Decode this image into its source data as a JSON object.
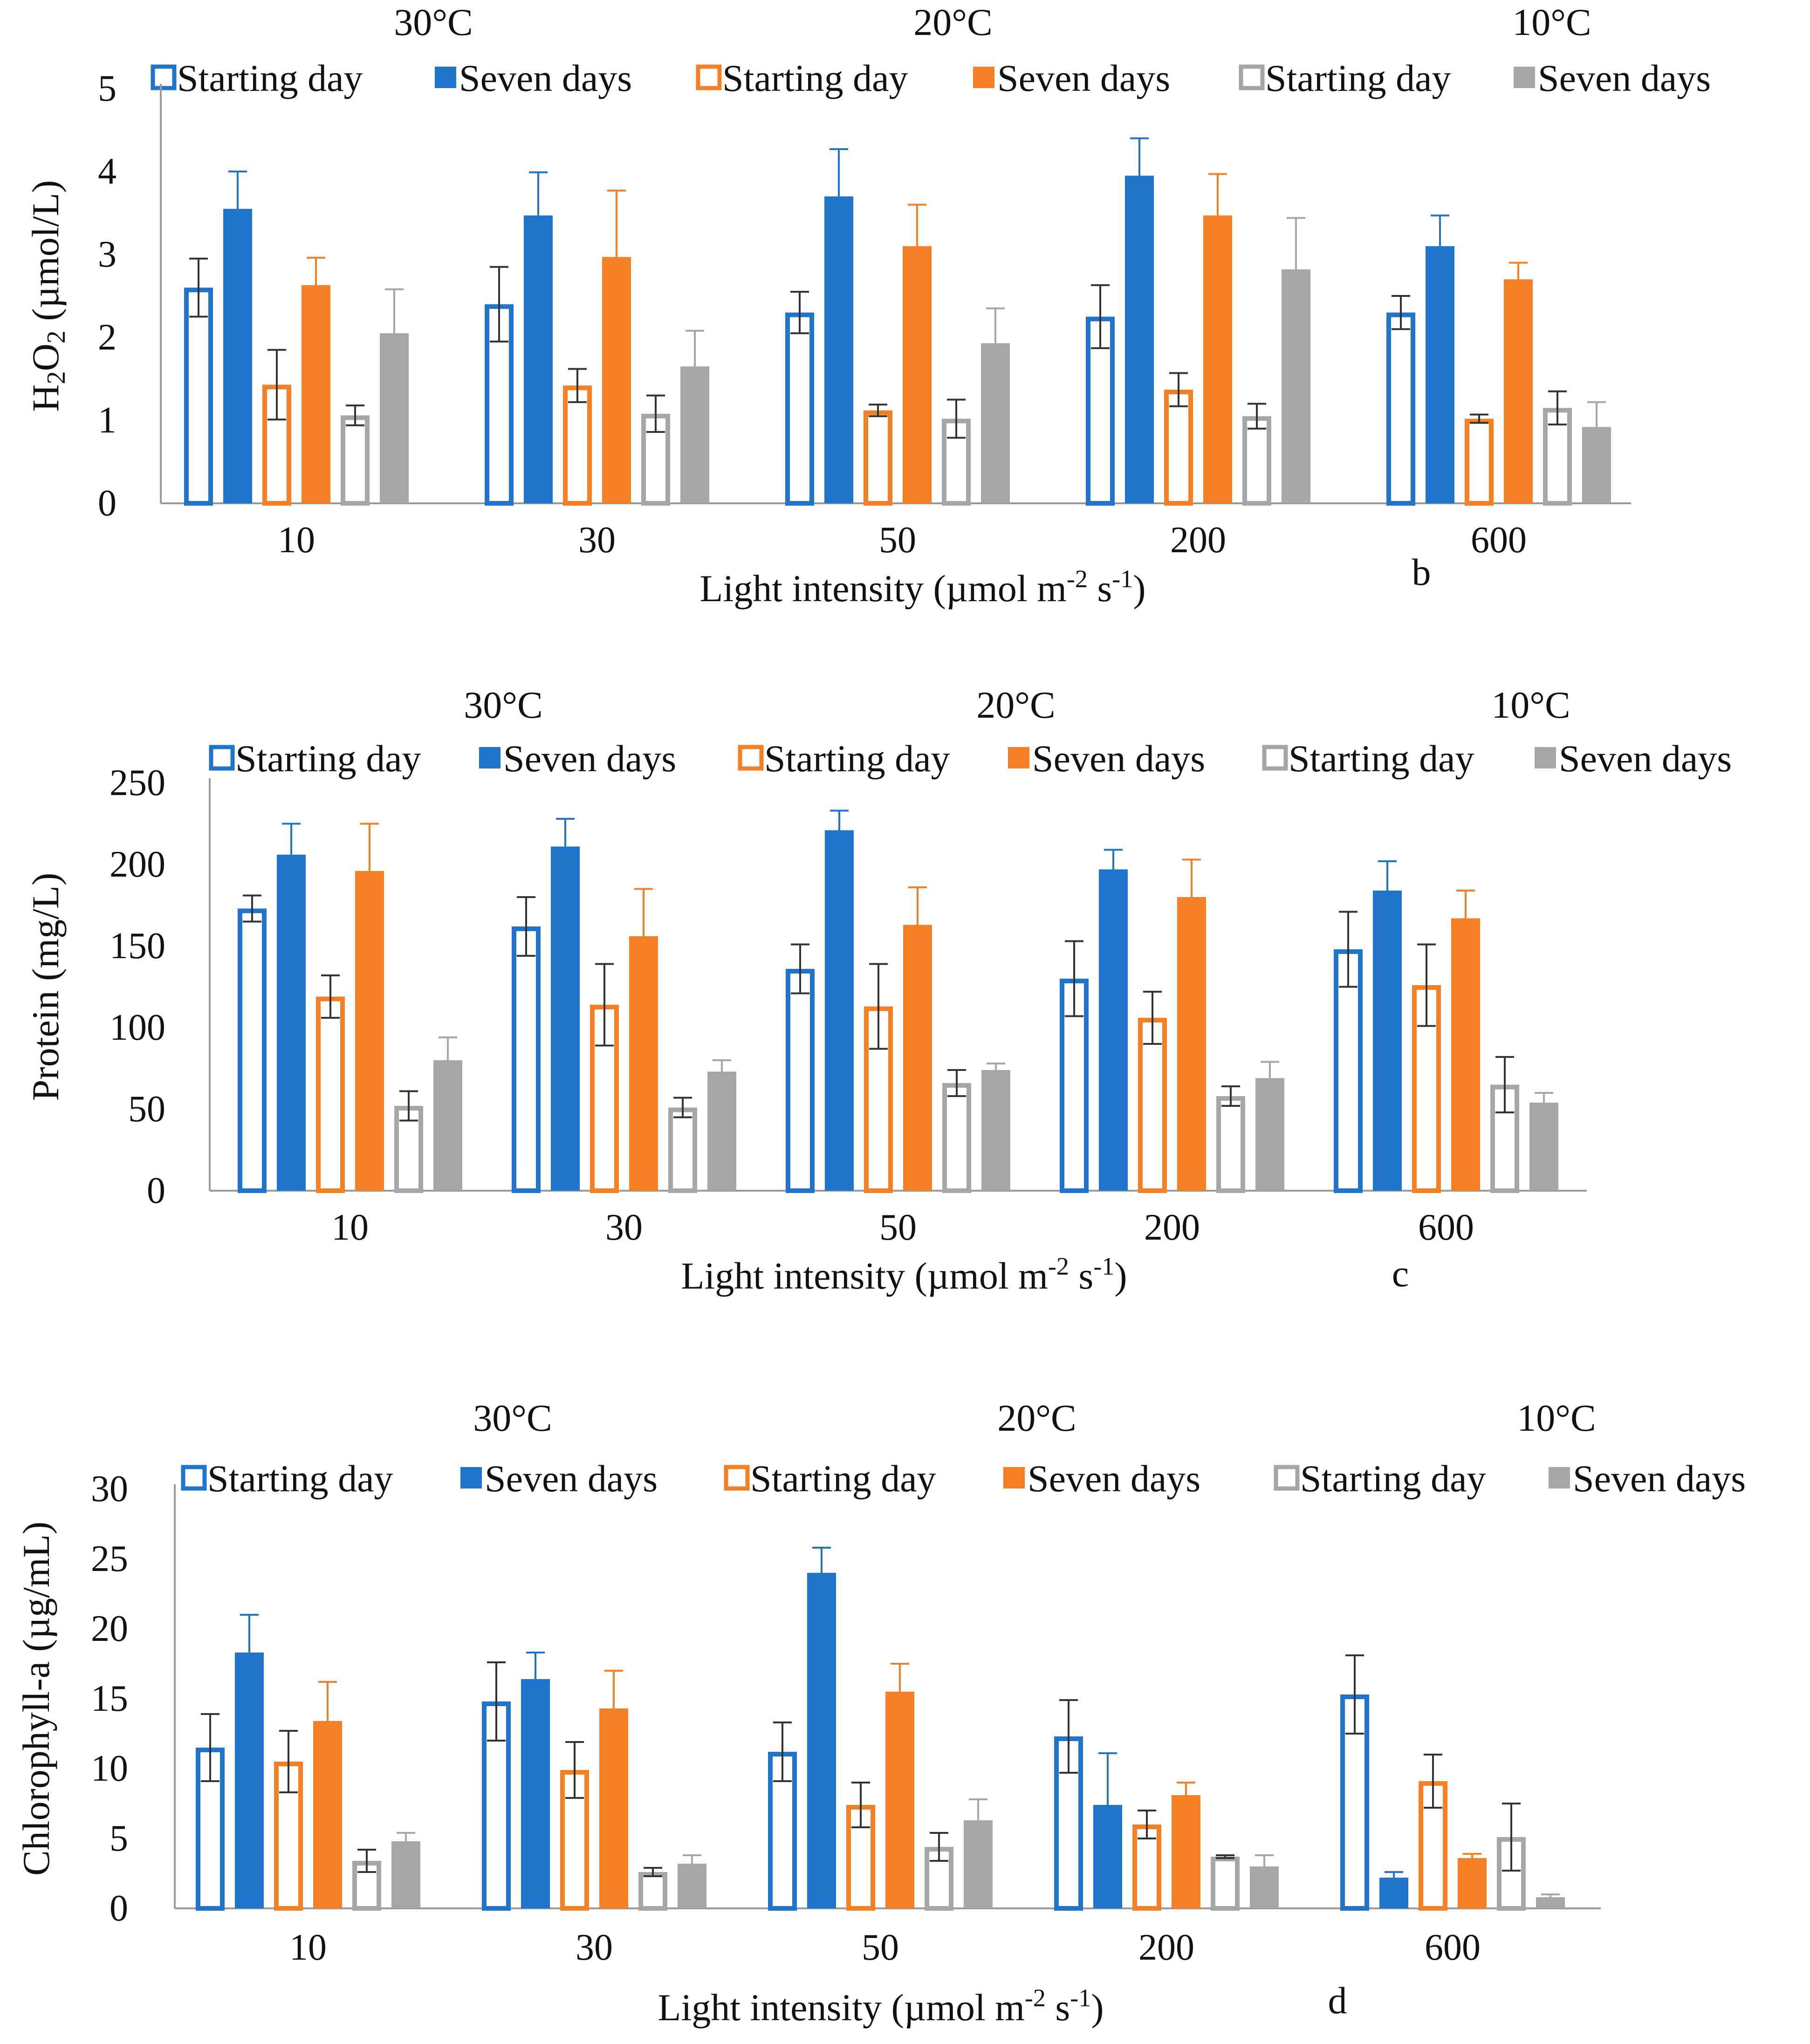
{
  "colors": {
    "blue": "#1f74cc",
    "orange": "#f57f25",
    "gray": "#a6a6a6",
    "axis": "#9a9a9a",
    "error": "#555555"
  },
  "legend_labels": [
    "Starting day",
    "Seven days",
    "Starting day",
    "Seven days",
    "Starting day",
    "Seven days"
  ],
  "temperature_headers": [
    "30°C",
    "20°C",
    "10°C"
  ],
  "chart_data": [
    {
      "type": "bar",
      "panel_letter": "b",
      "ylabel_parts": [
        "H",
        "2",
        "O",
        "2",
        " (µmol/L)"
      ],
      "xlabel": "Light intensity (µmol m-2 s-1)",
      "xlabel_parts": [
        "Light intensity (µmol m",
        "-2",
        " s",
        "-1",
        ")"
      ],
      "categories": [
        "10",
        "30",
        "50",
        "200",
        "600"
      ],
      "ylim": [
        0,
        5
      ],
      "yticks": [
        0,
        1,
        2,
        3,
        4,
        5
      ],
      "series": [
        {
          "name": "Starting day",
          "temperature": "30°C",
          "color": "blue",
          "filled": false,
          "values": [
            2.6,
            2.4,
            2.3,
            2.25,
            2.3
          ],
          "errors": [
            0.35,
            0.45,
            0.25,
            0.38,
            0.2
          ]
        },
        {
          "name": "Seven days",
          "temperature": "30°C",
          "color": "blue",
          "filled": true,
          "values": [
            3.55,
            3.47,
            3.7,
            3.95,
            3.1
          ],
          "errors": [
            0.45,
            0.52,
            0.57,
            0.45,
            0.37
          ]
        },
        {
          "name": "Starting day",
          "temperature": "20°C",
          "color": "orange",
          "filled": false,
          "values": [
            1.43,
            1.42,
            1.12,
            1.37,
            1.02
          ],
          "errors": [
            0.42,
            0.2,
            0.07,
            0.2,
            0.05
          ]
        },
        {
          "name": "Seven days",
          "temperature": "20°C",
          "color": "orange",
          "filled": true,
          "values": [
            2.63,
            2.97,
            3.1,
            3.47,
            2.7
          ],
          "errors": [
            0.33,
            0.8,
            0.5,
            0.5,
            0.2
          ]
        },
        {
          "name": "Starting day",
          "temperature": "10°C",
          "color": "gray",
          "filled": false,
          "values": [
            1.06,
            1.08,
            1.02,
            1.05,
            1.15
          ],
          "errors": [
            0.12,
            0.22,
            0.23,
            0.15,
            0.2
          ]
        },
        {
          "name": "Seven days",
          "temperature": "10°C",
          "color": "gray",
          "filled": true,
          "values": [
            2.05,
            1.65,
            1.93,
            2.82,
            0.92
          ],
          "errors": [
            0.53,
            0.43,
            0.42,
            0.62,
            0.3
          ]
        }
      ]
    },
    {
      "type": "bar",
      "panel_letter": "c",
      "ylabel_parts": [
        "Protein (mg/L)"
      ],
      "xlabel": "Light intensity (µmol m-2 s-1)",
      "xlabel_parts": [
        "Light intensity (µmol m",
        "-2",
        " s",
        "-1",
        ")"
      ],
      "categories": [
        "10",
        "30",
        "50",
        "200",
        "600"
      ],
      "ylim": [
        0,
        250
      ],
      "yticks": [
        0,
        50,
        100,
        150,
        200,
        250
      ],
      "series": [
        {
          "name": "Starting day",
          "temperature": "30°C",
          "color": "blue",
          "filled": false,
          "values": [
            173,
            162,
            136,
            130,
            148
          ],
          "errors": [
            8,
            18,
            15,
            23,
            23
          ]
        },
        {
          "name": "Seven days",
          "temperature": "30°C",
          "color": "blue",
          "filled": true,
          "values": [
            206,
            211,
            221,
            197,
            184
          ],
          "errors": [
            19,
            17,
            12,
            12,
            18
          ]
        },
        {
          "name": "Starting day",
          "temperature": "20°C",
          "color": "orange",
          "filled": false,
          "values": [
            119,
            114,
            113,
            106,
            126
          ],
          "errors": [
            13,
            25,
            26,
            16,
            25
          ]
        },
        {
          "name": "Seven days",
          "temperature": "20°C",
          "color": "orange",
          "filled": true,
          "values": [
            196,
            156,
            163,
            180,
            167
          ],
          "errors": [
            29,
            29,
            23,
            23,
            17
          ]
        },
        {
          "name": "Starting day",
          "temperature": "10°C",
          "color": "gray",
          "filled": false,
          "values": [
            52,
            51,
            66,
            58,
            65
          ],
          "errors": [
            9,
            6,
            8,
            6,
            17
          ]
        },
        {
          "name": "Seven days",
          "temperature": "10°C",
          "color": "gray",
          "filled": true,
          "values": [
            80,
            73,
            74,
            69,
            54
          ],
          "errors": [
            14,
            7,
            4,
            10,
            6
          ]
        }
      ]
    },
    {
      "type": "bar",
      "panel_letter": "d",
      "ylabel_parts": [
        "Chlorophyll-a (µg/mL)"
      ],
      "xlabel": "Light intensity (µmol m-2 s-1)",
      "xlabel_parts": [
        "Light intensity (µmol m",
        "-2",
        " s",
        "-1",
        ")"
      ],
      "categories": [
        "10",
        "30",
        "50",
        "200",
        "600"
      ],
      "ylim": [
        0,
        30
      ],
      "yticks": [
        0,
        5,
        10,
        15,
        20,
        25,
        30
      ],
      "series": [
        {
          "name": "Starting day",
          "temperature": "30°C",
          "color": "blue",
          "filled": false,
          "values": [
            11.5,
            14.8,
            11.2,
            12.3,
            15.3
          ],
          "errors": [
            2.4,
            2.8,
            2.1,
            2.6,
            2.8
          ]
        },
        {
          "name": "Seven days",
          "temperature": "30°C",
          "color": "blue",
          "filled": true,
          "values": [
            18.3,
            16.4,
            24.0,
            7.4,
            2.2
          ],
          "errors": [
            2.7,
            1.9,
            1.8,
            3.7,
            0.4
          ]
        },
        {
          "name": "Starting day",
          "temperature": "20°C",
          "color": "orange",
          "filled": false,
          "values": [
            10.5,
            9.9,
            7.4,
            6.0,
            9.1
          ],
          "errors": [
            2.2,
            2.0,
            1.6,
            1.0,
            1.9
          ]
        },
        {
          "name": "Seven days",
          "temperature": "20°C",
          "color": "orange",
          "filled": true,
          "values": [
            13.4,
            14.3,
            15.5,
            8.1,
            3.6
          ],
          "errors": [
            2.8,
            2.7,
            2.0,
            0.9,
            0.3
          ]
        },
        {
          "name": "Starting day",
          "temperature": "10°C",
          "color": "gray",
          "filled": false,
          "values": [
            3.4,
            2.6,
            4.4,
            3.7,
            5.1
          ],
          "errors": [
            0.8,
            0.3,
            1.0,
            0.1,
            2.4
          ]
        },
        {
          "name": "Seven days",
          "temperature": "10°C",
          "color": "gray",
          "filled": true,
          "values": [
            4.8,
            3.2,
            6.3,
            3.0,
            0.8
          ],
          "errors": [
            0.6,
            0.6,
            1.5,
            0.8,
            0.2
          ]
        }
      ]
    }
  ]
}
